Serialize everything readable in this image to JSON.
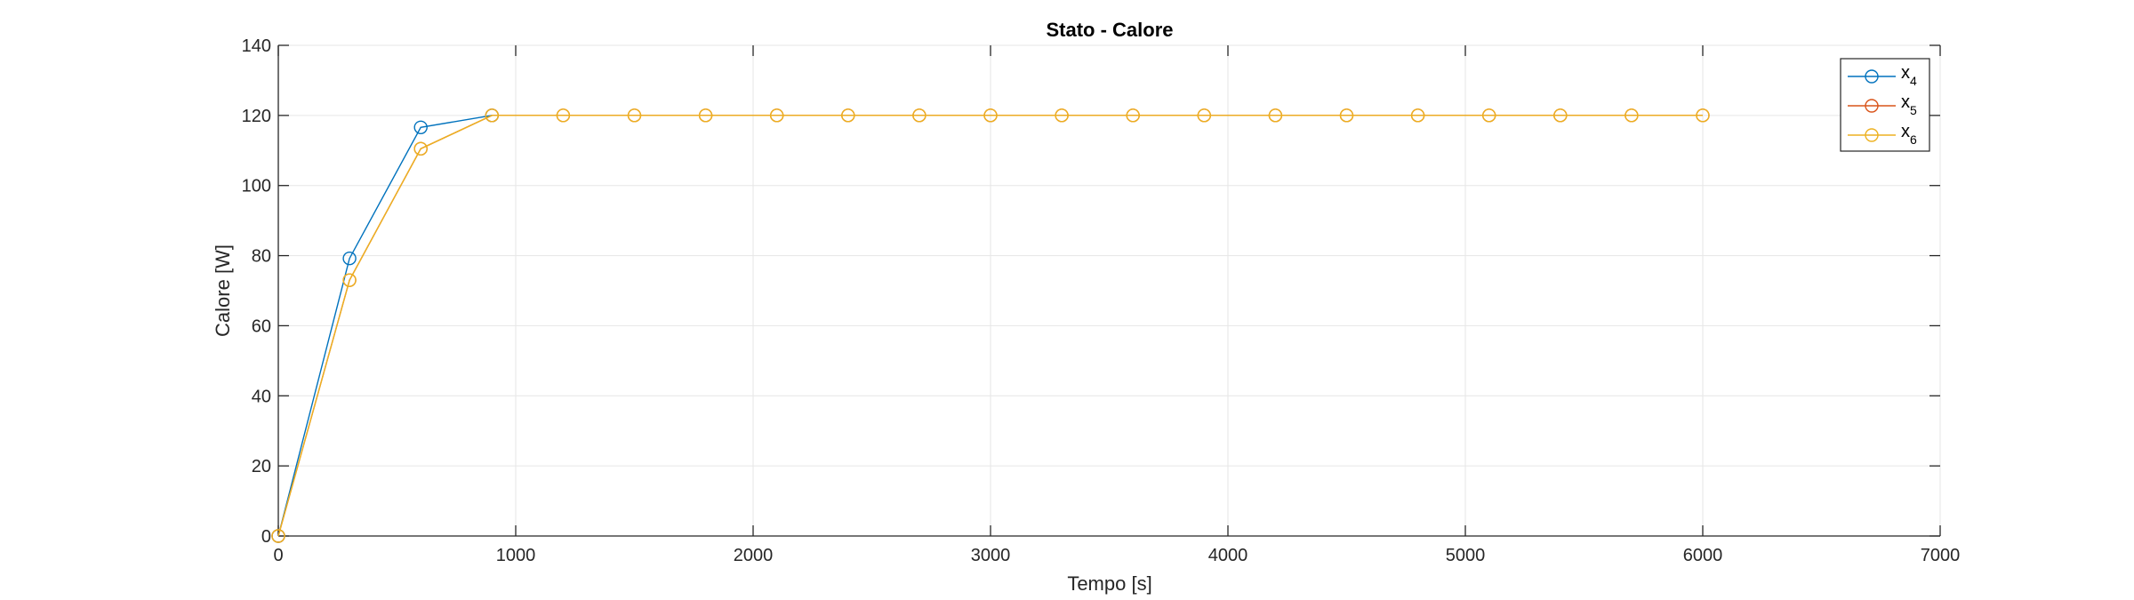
{
  "chart_data": {
    "type": "line",
    "title": "Stato - Calore",
    "xlabel": "Tempo [s]",
    "ylabel": "Calore [W]",
    "xlim": [
      0,
      7000
    ],
    "ylim": [
      0,
      140
    ],
    "xticks": [
      0,
      1000,
      2000,
      3000,
      4000,
      5000,
      6000,
      7000
    ],
    "yticks": [
      0,
      20,
      40,
      60,
      80,
      100,
      120,
      140
    ],
    "grid": true,
    "legend_position": "top-right",
    "marker": "circle",
    "series": [
      {
        "name": "x4",
        "name_base": "x",
        "name_sub": "4",
        "color": "#0072BD",
        "x": [
          0,
          300,
          600,
          900
        ],
        "y": [
          0,
          79.2,
          116.6,
          120
        ]
      },
      {
        "name": "x5",
        "name_base": "x",
        "name_sub": "5",
        "color": "#D95319",
        "x": [
          0,
          300,
          600,
          900,
          1200,
          1500,
          1800,
          2100,
          2400,
          2700,
          3000,
          3300,
          3600,
          3900,
          4200,
          4500,
          4800,
          5100,
          5400,
          5700,
          6000
        ],
        "y": [
          0,
          73,
          110.5,
          120,
          120,
          120,
          120,
          120,
          120,
          120,
          120,
          120,
          120,
          120,
          120,
          120,
          120,
          120,
          120,
          120,
          120
        ]
      },
      {
        "name": "x6",
        "name_base": "x",
        "name_sub": "6",
        "color": "#EDB120",
        "x": [
          0,
          300,
          600,
          900,
          1200,
          1500,
          1800,
          2100,
          2400,
          2700,
          3000,
          3300,
          3600,
          3900,
          4200,
          4500,
          4800,
          5100,
          5400,
          5700,
          6000
        ],
        "y": [
          0,
          73,
          110.5,
          120,
          120,
          120,
          120,
          120,
          120,
          120,
          120,
          120,
          120,
          120,
          120,
          120,
          120,
          120,
          120,
          120,
          120
        ]
      }
    ]
  }
}
